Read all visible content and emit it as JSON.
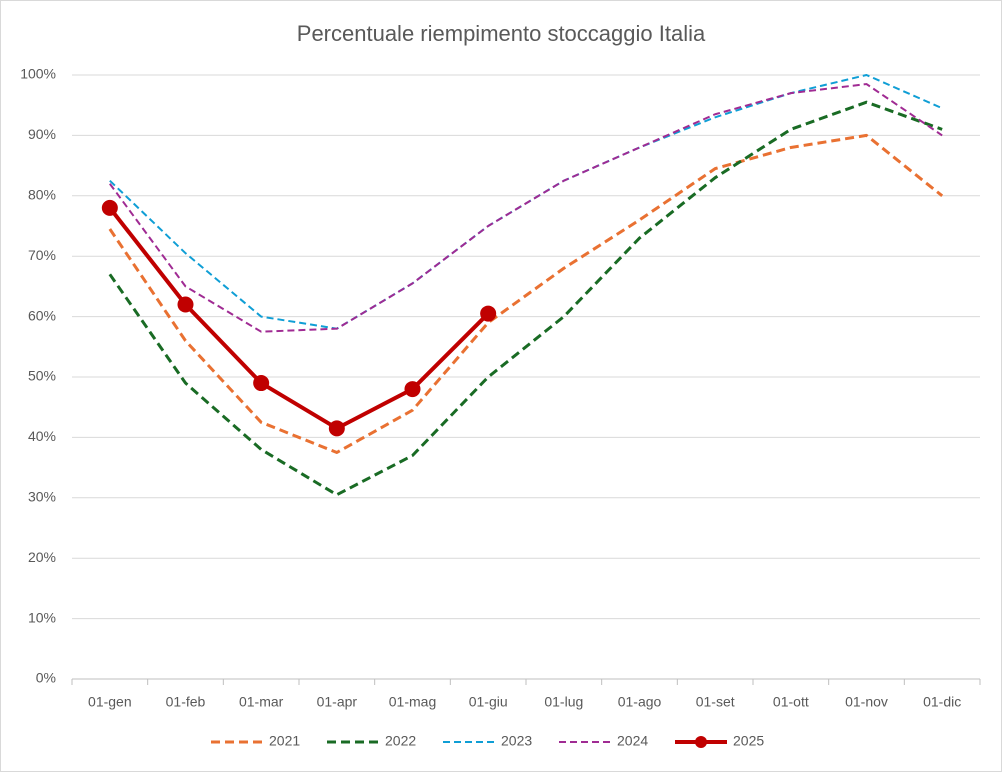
{
  "chart_data": {
    "type": "line",
    "title": "Percentuale riempimento stoccaggio Italia",
    "categories": [
      "01-gen",
      "01-feb",
      "01-mar",
      "01-apr",
      "01-mag",
      "01-giu",
      "01-lug",
      "01-ago",
      "01-set",
      "01-ott",
      "01-nov",
      "01-dic"
    ],
    "series": [
      {
        "name": "2021",
        "color": "#e97132",
        "line_style": "dashed",
        "line_width": 3,
        "marker": false,
        "values": [
          74.5,
          56,
          42.5,
          37.5,
          44.5,
          59,
          68,
          76,
          84.5,
          88,
          90,
          80
        ]
      },
      {
        "name": "2022",
        "color": "#196b24",
        "line_style": "dashed",
        "line_width": 3,
        "marker": false,
        "values": [
          67,
          49,
          38,
          30.5,
          37,
          50,
          60,
          73,
          83,
          91,
          95.5,
          91
        ]
      },
      {
        "name": "2023",
        "color": "#0f9ed5",
        "line_style": "dashed",
        "line_width": 2,
        "marker": false,
        "values": [
          82.5,
          70.5,
          60,
          58,
          65.5,
          75,
          82.5,
          88,
          93,
          97,
          100,
          94.5
        ]
      },
      {
        "name": "2024",
        "color": "#a02b93",
        "line_style": "dashed",
        "line_width": 2,
        "marker": false,
        "values": [
          82,
          65,
          57.5,
          58,
          65.5,
          75,
          82.5,
          88,
          93.5,
          97,
          98.5,
          90
        ]
      },
      {
        "name": "2025",
        "color": "#c00000",
        "line_style": "solid",
        "line_width": 4,
        "marker": true,
        "values": [
          78,
          62,
          49,
          41.5,
          48,
          60.5,
          null,
          null,
          null,
          null,
          null,
          null
        ]
      }
    ],
    "ylim": [
      0,
      100
    ],
    "yticks": [
      {
        "value": 0,
        "label": "0%"
      },
      {
        "value": 10,
        "label": "10%"
      },
      {
        "value": 20,
        "label": "20%"
      },
      {
        "value": 30,
        "label": "30%"
      },
      {
        "value": 40,
        "label": "40%"
      },
      {
        "value": 50,
        "label": "50%"
      },
      {
        "value": 60,
        "label": "60%"
      },
      {
        "value": 70,
        "label": "70%"
      },
      {
        "value": 80,
        "label": "80%"
      },
      {
        "value": 90,
        "label": "90%"
      },
      {
        "value": 100,
        "label": "100%"
      }
    ],
    "grid": true,
    "legend": "bottom"
  }
}
